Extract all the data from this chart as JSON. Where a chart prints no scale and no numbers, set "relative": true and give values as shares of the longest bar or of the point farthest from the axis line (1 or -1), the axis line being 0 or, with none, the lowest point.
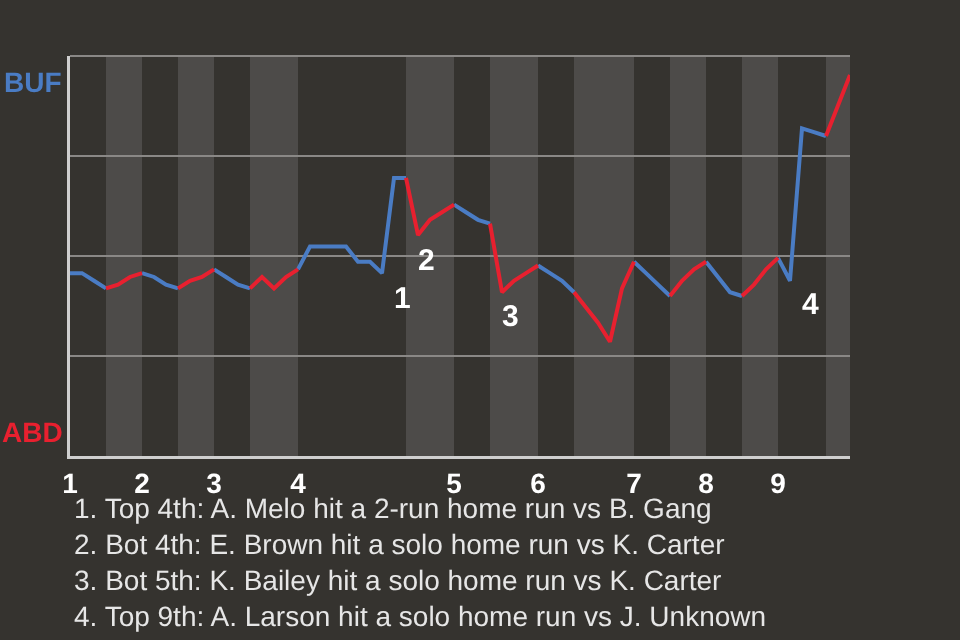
{
  "chart_data": {
    "type": "line",
    "relative": true,
    "categories": [
      "1",
      null,
      null,
      null,
      null,
      null,
      "2",
      null,
      null,
      null,
      null,
      null,
      "3",
      null,
      null,
      null,
      null,
      null,
      null,
      "4",
      null,
      null,
      null,
      null,
      null,
      null,
      null,
      null,
      null,
      null,
      null,
      null,
      "5",
      null,
      null,
      null,
      null,
      null,
      null,
      "6",
      null,
      null,
      null,
      null,
      null,
      null,
      null,
      "7",
      null,
      null,
      null,
      null,
      null,
      "8",
      null,
      null,
      null,
      null,
      null,
      "9",
      null,
      null,
      null,
      null,
      null,
      null
    ],
    "grid": true,
    "legend": false,
    "marker": "none",
    "line_style": "solid",
    "series": [
      {
        "name": "BUF",
        "color": "#4a7cc4",
        "values": [
          0.48,
          0.48,
          0.46,
          0.44,
          null,
          null,
          0.48,
          0.47,
          0.45,
          0.44,
          null,
          null,
          0.49,
          0.47,
          0.45,
          0.44,
          null,
          null,
          null,
          0.49,
          0.55,
          0.55,
          0.55,
          0.55,
          0.51,
          0.51,
          0.48,
          0.73,
          0.73,
          null,
          null,
          null,
          0.66,
          0.64,
          0.62,
          0.61,
          null,
          null,
          null,
          0.5,
          0.48,
          0.46,
          0.43,
          null,
          null,
          null,
          null,
          0.51,
          0.48,
          0.45,
          0.42,
          null,
          null,
          0.51,
          0.47,
          0.43,
          0.42,
          null,
          null,
          0.52,
          0.46,
          0.86,
          0.85,
          0.84,
          null,
          null
        ]
      },
      {
        "name": "ABD",
        "color": "#e8202f",
        "values": [
          null,
          null,
          null,
          0.44,
          0.45,
          0.47,
          0.48,
          null,
          null,
          0.44,
          0.46,
          0.47,
          0.49,
          null,
          null,
          0.44,
          0.47,
          0.44,
          0.47,
          0.49,
          null,
          null,
          null,
          null,
          null,
          null,
          null,
          null,
          0.73,
          0.58,
          0.62,
          0.64,
          0.66,
          null,
          null,
          0.61,
          0.43,
          0.46,
          0.48,
          0.5,
          null,
          null,
          0.43,
          0.39,
          0.35,
          0.3,
          0.44,
          0.51,
          null,
          null,
          0.42,
          0.46,
          0.49,
          0.51,
          null,
          null,
          0.42,
          0.45,
          0.49,
          0.52,
          null,
          null,
          null,
          0.84,
          0.92,
          1
        ]
      }
    ],
    "annotations": [
      "1",
      "2",
      "3",
      "4",
      "1. Top 4th: A. Melo hit a 2-run home run vs B. Gang",
      "2. Bot 4th: E. Brown hit a solo home run vs K. Carter",
      "3. Bot 5th: K. Bailey hit a solo home run vs K. Carter",
      "4. Top 9th: A. Larson hit a solo home run vs J. Unknown"
    ]
  }
}
